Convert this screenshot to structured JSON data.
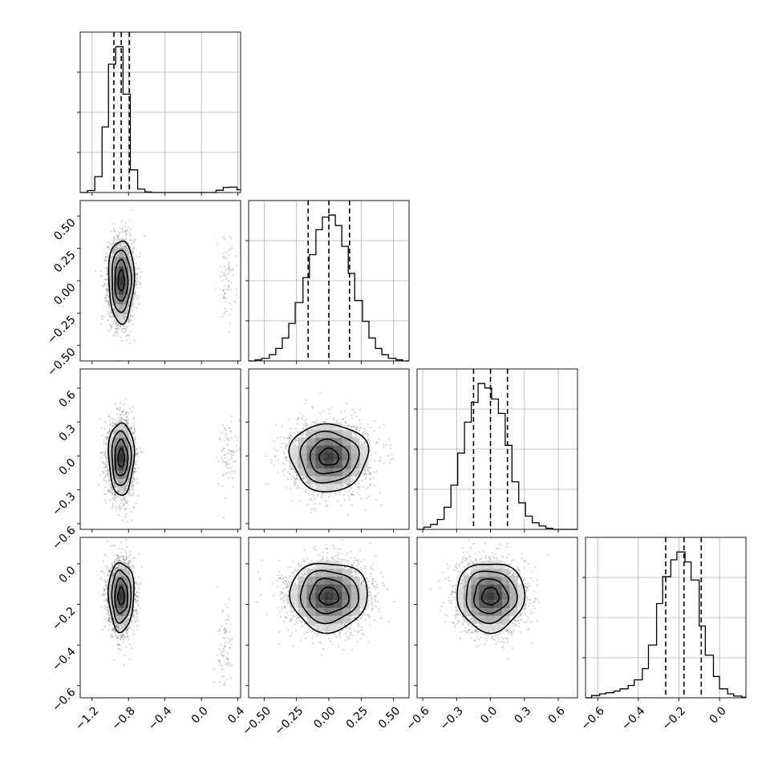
{
  "chart_data": {
    "type": "corner",
    "parameters": [
      {
        "axis_range": [
          -1.33,
          0.43
        ],
        "ticks": [
          -1.2,
          -0.8,
          -0.4,
          0.0,
          0.4
        ],
        "tick_labels": [
          "−1.2",
          "−0.8",
          "−0.4",
          "0.0",
          "0.4"
        ],
        "median": -0.88,
        "q16": -0.96,
        "q84": -0.79
      },
      {
        "axis_range": [
          -0.62,
          0.62
        ],
        "ticks": [
          -0.5,
          -0.25,
          0.0,
          0.25,
          0.5
        ],
        "tick_labels": [
          "−0.50",
          "−0.25",
          "0.00",
          "0.25",
          "0.50"
        ],
        "median": 0.0,
        "q16": -0.16,
        "q84": 0.16
      },
      {
        "axis_range": [
          -0.65,
          0.77
        ],
        "ticks": [
          -0.6,
          -0.3,
          0.0,
          0.3,
          0.6
        ],
        "tick_labels": [
          "−0.6",
          "−0.3",
          "0.0",
          "0.3",
          "0.6"
        ],
        "median": 0.0,
        "q16": -0.15,
        "q84": 0.15
      },
      {
        "axis_range": [
          -0.66,
          0.13
        ],
        "ticks": [
          -0.6,
          -0.4,
          -0.2,
          0.0
        ],
        "tick_labels": [
          "−0.6",
          "−0.4",
          "−0.2",
          "0.0"
        ],
        "median": -0.175,
        "q16": -0.265,
        "q84": -0.09
      }
    ],
    "marginals": [
      {
        "edges": [
          -1.33,
          -1.25,
          -1.17,
          -1.09,
          -1.02,
          -0.94,
          -0.86,
          -0.78,
          -0.7,
          -0.62,
          -0.55,
          -0.47,
          -0.39,
          -0.31,
          -0.23,
          -0.15,
          -0.08,
          0.0,
          0.08,
          0.16,
          0.24,
          0.31,
          0.39,
          0.43
        ],
        "counts": [
          0,
          18,
          140,
          580,
          1135,
          1290,
          870,
          200,
          30,
          5,
          0,
          0,
          0,
          0,
          0,
          0,
          0,
          0,
          0,
          20,
          45,
          48,
          25
        ]
      },
      {
        "edges": [
          -0.62,
          -0.57,
          -0.52,
          -0.46,
          -0.41,
          -0.36,
          -0.31,
          -0.26,
          -0.2,
          -0.15,
          -0.1,
          -0.05,
          0.0,
          0.05,
          0.1,
          0.15,
          0.2,
          0.26,
          0.31,
          0.36,
          0.41,
          0.46,
          0.52,
          0.57,
          0.62
        ],
        "counts": [
          0,
          10,
          25,
          60,
          120,
          220,
          360,
          560,
          800,
          1020,
          1260,
          1380,
          1400,
          1300,
          1100,
          840,
          580,
          380,
          220,
          120,
          60,
          25,
          10,
          0
        ]
      },
      {
        "edges": [
          -0.65,
          -0.59,
          -0.53,
          -0.47,
          -0.41,
          -0.35,
          -0.29,
          -0.23,
          -0.17,
          -0.11,
          -0.05,
          0.01,
          0.07,
          0.13,
          0.19,
          0.25,
          0.31,
          0.37,
          0.43,
          0.49,
          0.55,
          0.61,
          0.67,
          0.73,
          0.77
        ],
        "counts": [
          0,
          20,
          45,
          90,
          200,
          400,
          690,
          970,
          1150,
          1320,
          1280,
          1180,
          1050,
          760,
          430,
          240,
          120,
          60,
          30,
          10,
          0,
          0,
          0,
          0
        ]
      },
      {
        "edges": [
          -0.66,
          -0.63,
          -0.59,
          -0.56,
          -0.52,
          -0.49,
          -0.45,
          -0.42,
          -0.38,
          -0.35,
          -0.31,
          -0.28,
          -0.24,
          -0.21,
          -0.17,
          -0.14,
          -0.1,
          -0.07,
          -0.03,
          0.0,
          0.04,
          0.07,
          0.11,
          0.13
        ],
        "counts": [
          0,
          20,
          35,
          45,
          60,
          80,
          110,
          160,
          260,
          470,
          840,
          1080,
          1230,
          1300,
          1210,
          1050,
          640,
          380,
          190,
          80,
          35,
          15,
          5
        ]
      }
    ],
    "pairs": [
      {
        "x_param": 0,
        "y_param": 1,
        "modes": [
          {
            "cx": -0.88,
            "cy": 0.0,
            "sx": 0.07,
            "sy": 0.16,
            "weight": 0.97
          },
          {
            "cx": 0.28,
            "cy": 0.0,
            "sx": 0.05,
            "sy": 0.16,
            "weight": 0.03
          }
        ]
      },
      {
        "x_param": 0,
        "y_param": 2,
        "modes": [
          {
            "cx": -0.88,
            "cy": -0.02,
            "sx": 0.07,
            "sy": 0.16,
            "weight": 0.97
          },
          {
            "cx": 0.28,
            "cy": 0.02,
            "sx": 0.05,
            "sy": 0.16,
            "weight": 0.03
          }
        ]
      },
      {
        "x_param": 1,
        "y_param": 2,
        "modes": [
          {
            "cx": 0.0,
            "cy": -0.01,
            "sx": 0.15,
            "sy": 0.15,
            "weight": 1.0
          }
        ]
      },
      {
        "x_param": 0,
        "y_param": 3,
        "modes": [
          {
            "cx": -0.88,
            "cy": -0.16,
            "sx": 0.07,
            "sy": 0.085,
            "weight": 0.97
          },
          {
            "cx": 0.27,
            "cy": -0.4,
            "sx": 0.05,
            "sy": 0.1,
            "weight": 0.03
          }
        ]
      },
      {
        "x_param": 1,
        "y_param": 3,
        "modes": [
          {
            "cx": 0.0,
            "cy": -0.16,
            "sx": 0.15,
            "sy": 0.085,
            "weight": 1.0
          }
        ]
      },
      {
        "x_param": 2,
        "y_param": 3,
        "modes": [
          {
            "cx": 0.0,
            "cy": -0.16,
            "sx": 0.15,
            "sy": 0.085,
            "weight": 1.0
          }
        ]
      }
    ]
  }
}
